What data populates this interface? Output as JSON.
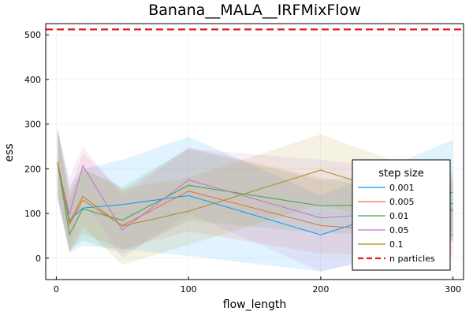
{
  "chart_data": {
    "type": "line",
    "title": "Banana__MALA__IRFMixFlow",
    "xlabel": "flow_length",
    "ylabel": "ess",
    "xlim": [
      -8,
      308
    ],
    "ylim": [
      -48,
      525
    ],
    "xticks": [
      0,
      100,
      200,
      300
    ],
    "yticks": [
      0,
      100,
      200,
      300,
      400,
      500
    ],
    "x": [
      1,
      10,
      20,
      50,
      100,
      200,
      300
    ],
    "grid": true,
    "legend_title": "step size",
    "legend_position": "right",
    "series": [
      {
        "name": "0.001",
        "color": "#009AFA",
        "values": [
          215,
          85,
          112,
          120,
          140,
          52,
          148
        ],
        "lower": [
          135,
          12,
          28,
          20,
          5,
          -30,
          40
        ],
        "upper": [
          290,
          165,
          200,
          220,
          272,
          140,
          265
        ]
      },
      {
        "name": "0.005",
        "color": "#E36F47",
        "values": [
          215,
          75,
          130,
          73,
          150,
          73,
          52
        ],
        "lower": [
          140,
          10,
          55,
          20,
          60,
          10,
          5
        ],
        "upper": [
          295,
          150,
          235,
          150,
          248,
          180,
          125
        ]
      },
      {
        "name": "0.01",
        "color": "#3EA44E",
        "values": [
          213,
          53,
          110,
          85,
          163,
          117,
          122
        ],
        "lower": [
          135,
          18,
          40,
          10,
          85,
          55,
          55
        ],
        "upper": [
          285,
          130,
          200,
          160,
          245,
          175,
          195
        ]
      },
      {
        "name": "0.05",
        "color": "#C371D2",
        "values": [
          210,
          98,
          207,
          63,
          175,
          90,
          110
        ],
        "lower": [
          125,
          20,
          130,
          0,
          100,
          -30,
          35
        ],
        "upper": [
          285,
          180,
          250,
          140,
          245,
          220,
          185
        ]
      },
      {
        "name": "0.1",
        "color": "#AC8D18",
        "values": [
          215,
          80,
          138,
          72,
          105,
          197,
          105
        ],
        "lower": [
          150,
          15,
          70,
          -15,
          30,
          120,
          40
        ],
        "upper": [
          290,
          145,
          200,
          155,
          180,
          277,
          170
        ]
      },
      {
        "name": "n particles",
        "color": "#E41A1C",
        "hline": 512,
        "dashed": true
      }
    ]
  }
}
